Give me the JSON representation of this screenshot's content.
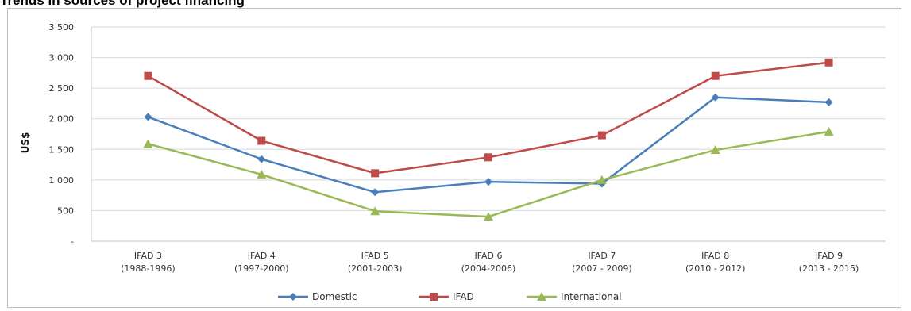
{
  "chart_data": {
    "type": "line",
    "title": "Trends in sources of project financing",
    "ylabel": "US$",
    "xlabel": "",
    "ylim": [
      0,
      3500
    ],
    "yticks": [
      {
        "value": 0,
        "label": "-"
      },
      {
        "value": 500,
        "label": "500"
      },
      {
        "value": 1000,
        "label": "1 000"
      },
      {
        "value": 1500,
        "label": "1 500"
      },
      {
        "value": 2000,
        "label": "2 000"
      },
      {
        "value": 2500,
        "label": "2 500"
      },
      {
        "value": 3000,
        "label": "3 000"
      },
      {
        "value": 3500,
        "label": "3 500"
      }
    ],
    "grid": true,
    "legend_position": "bottom",
    "categories": [
      [
        "IFAD 3",
        "(1988-1996)"
      ],
      [
        "IFAD 4",
        "(1997-2000)"
      ],
      [
        "IFAD 5",
        "(2001-2003)"
      ],
      [
        "IFAD 6",
        "(2004-2006)"
      ],
      [
        "IFAD 7",
        "(2007 - 2009)"
      ],
      [
        "IFAD 8",
        "(2010 - 2012)"
      ],
      [
        "IFAD 9",
        "(2013 - 2015)"
      ]
    ],
    "series": [
      {
        "name": "Domestic",
        "color": "#4a7ebb",
        "marker": "diamond",
        "values": [
          2030,
          1340,
          800,
          970,
          940,
          2350,
          2270
        ]
      },
      {
        "name": "IFAD",
        "color": "#be4b48",
        "marker": "square",
        "values": [
          2700,
          1640,
          1110,
          1370,
          1730,
          2700,
          2920
        ]
      },
      {
        "name": "International",
        "color": "#98b954",
        "marker": "triangle",
        "values": [
          1590,
          1090,
          490,
          400,
          1000,
          1490,
          1790
        ]
      }
    ]
  }
}
